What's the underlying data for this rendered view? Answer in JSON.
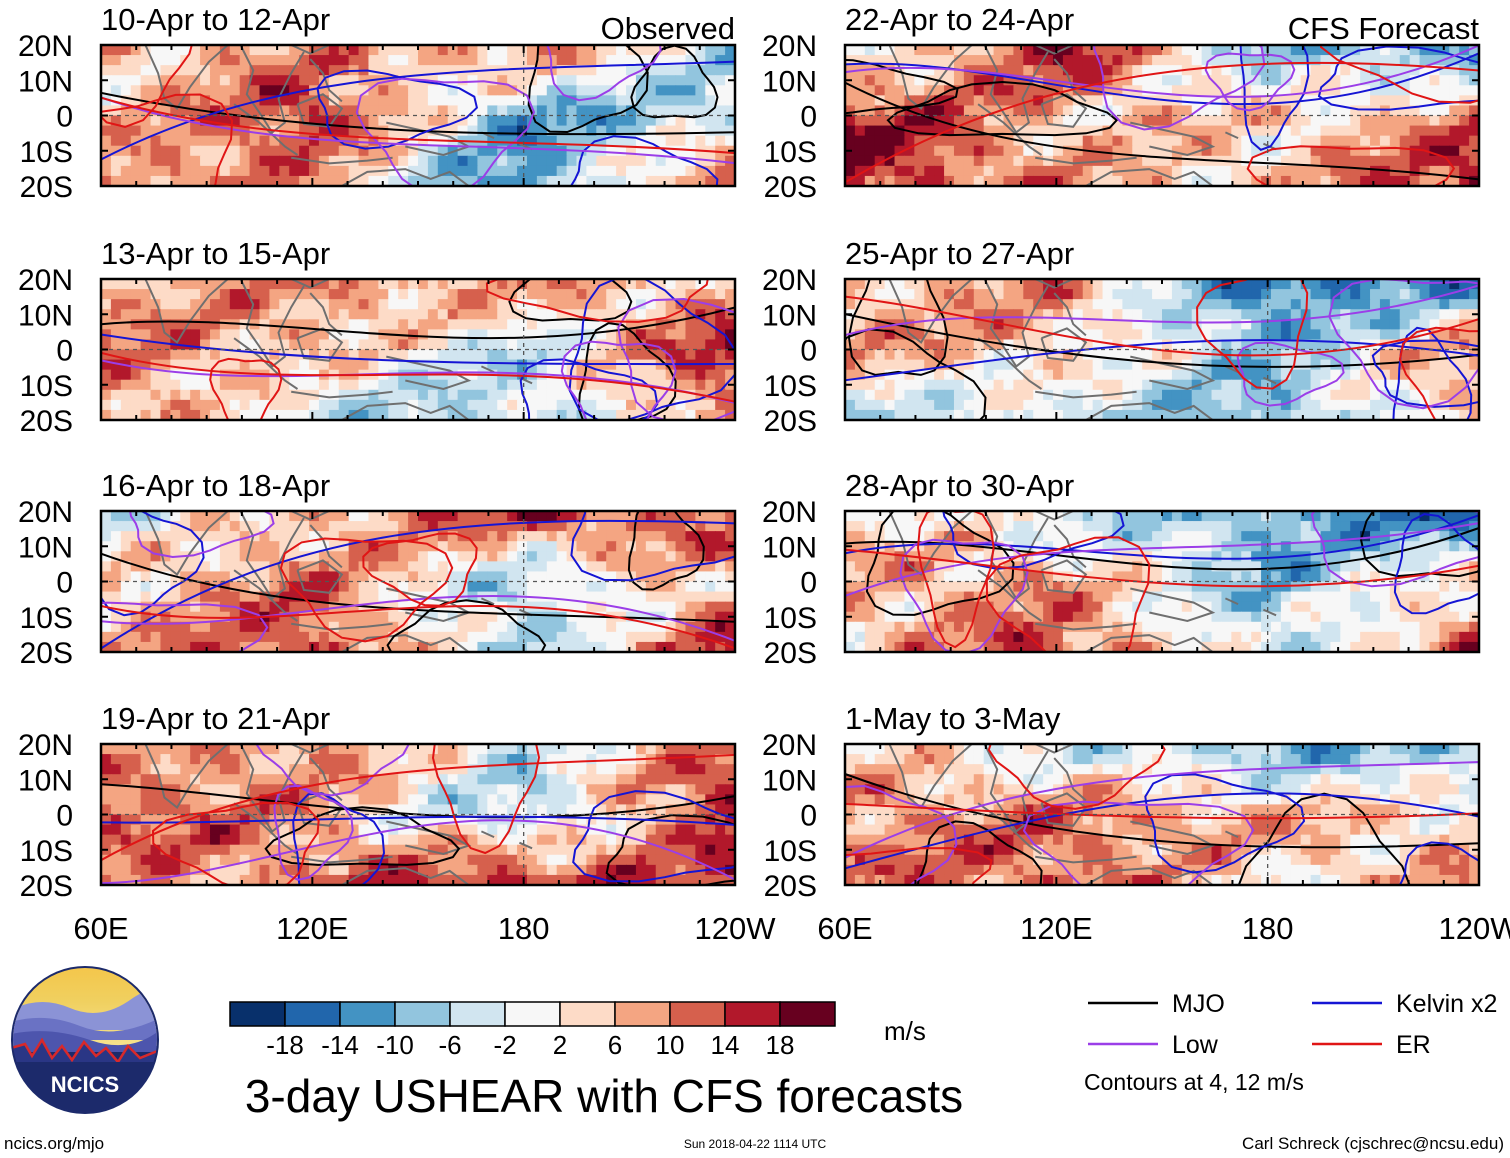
{
  "chart_data": {
    "type": "heatmap",
    "title": "3-day USHEAR with CFS forecasts",
    "variable": "USHEAR",
    "units": "m/s",
    "observed_label": "Observed",
    "forecast_label": "CFS Forecast",
    "x_range": [
      "60E",
      "120W"
    ],
    "x_ticks": [
      "60E",
      "120E",
      "180",
      "120W"
    ],
    "y_range": [
      -20,
      20
    ],
    "y_ticks": [
      "20N",
      "10N",
      "0",
      "10S",
      "20S"
    ],
    "panels": [
      {
        "period": "10-Apr to 12-Apr",
        "source": "Observed",
        "header": "Observed",
        "pattern": [
          [
            0.3,
            0.35,
            0.55,
            -0.25
          ],
          [
            0.15,
            0.85,
            -0.55,
            -0.3
          ],
          [
            0.6,
            0.4,
            -0.7,
            0.95
          ]
        ]
      },
      {
        "period": "13-Apr to 15-Apr",
        "source": "Observed",
        "header": "",
        "pattern": [
          [
            0.3,
            0.5,
            0.45,
            0.2
          ],
          [
            0.55,
            0.3,
            -0.25,
            0.9
          ],
          [
            0.55,
            -0.2,
            -0.3,
            0.5
          ]
        ]
      },
      {
        "period": "16-Apr to 18-Apr",
        "source": "Observed",
        "header": "",
        "pattern": [
          [
            -0.3,
            0.3,
            0.85,
            0.55
          ],
          [
            0.25,
            0.55,
            -0.35,
            0.4
          ],
          [
            0.35,
            0.75,
            -0.35,
            0.85
          ]
        ]
      },
      {
        "period": "19-Apr to 21-Apr",
        "source": "Observed",
        "header": "",
        "pattern": [
          [
            0.25,
            0.55,
            -0.2,
            0.6
          ],
          [
            0.75,
            0.35,
            -0.35,
            0.95
          ],
          [
            0.35,
            0.55,
            0.9,
            0.5
          ]
        ]
      },
      {
        "period": "22-Apr to 24-Apr",
        "source": "CFS Forecast",
        "header": "CFS Forecast",
        "pattern": [
          [
            -0.25,
            0.95,
            -0.45,
            -0.55
          ],
          [
            0.9,
            0.3,
            0.2,
            0.45
          ],
          [
            0.9,
            0.4,
            0.2,
            0.95
          ]
        ]
      },
      {
        "period": "25-Apr to 27-Apr",
        "source": "CFS Forecast",
        "header": "",
        "pattern": [
          [
            0.3,
            0.5,
            -0.85,
            -0.6
          ],
          [
            0.45,
            0.25,
            -0.4,
            0.5
          ],
          [
            -0.3,
            -0.2,
            -0.5,
            0.35
          ]
        ]
      },
      {
        "period": "28-Apr to 30-Apr",
        "source": "CFS Forecast",
        "header": "",
        "pattern": [
          [
            0.2,
            -0.2,
            -0.5,
            -0.8
          ],
          [
            0.35,
            0.4,
            -0.45,
            0.2
          ],
          [
            0.15,
            0.75,
            -0.25,
            0.7
          ]
        ]
      },
      {
        "period": "1-May to 3-May",
        "source": "CFS Forecast",
        "header": "",
        "pattern": [
          [
            0.2,
            -0.1,
            -0.55,
            -0.4
          ],
          [
            0.45,
            0.5,
            0.35,
            0.15
          ],
          [
            0.5,
            0.65,
            0.1,
            0.4
          ]
        ]
      }
    ],
    "colorbar": {
      "label": "m/s",
      "ticks": [
        "-18",
        "-14",
        "-10",
        "-6",
        "-2",
        "2",
        "6",
        "10",
        "14",
        "18"
      ],
      "colors": [
        "#08306b",
        "#2166ac",
        "#4393c3",
        "#92c5de",
        "#d1e5f0",
        "#f7f7f7",
        "#fddbc7",
        "#f4a582",
        "#d6604d",
        "#b2182b",
        "#67001f"
      ]
    },
    "legend": {
      "items": [
        {
          "name": "MJO",
          "color": "#000000"
        },
        {
          "name": "Kelvin x2",
          "color": "#1515d4"
        },
        {
          "name": "Low",
          "color": "#9b3ee8"
        },
        {
          "name": "ER",
          "color": "#e01515"
        }
      ],
      "contour_note": "Contours at 4, 12 m/s"
    }
  },
  "logo": {
    "text": "NCICS"
  },
  "footer": {
    "url": "ncics.org/mjo",
    "timestamp": "Sun 2018-04-22 1114 UTC",
    "credit": "Carl Schreck (cjschrec@ncsu.edu)"
  }
}
